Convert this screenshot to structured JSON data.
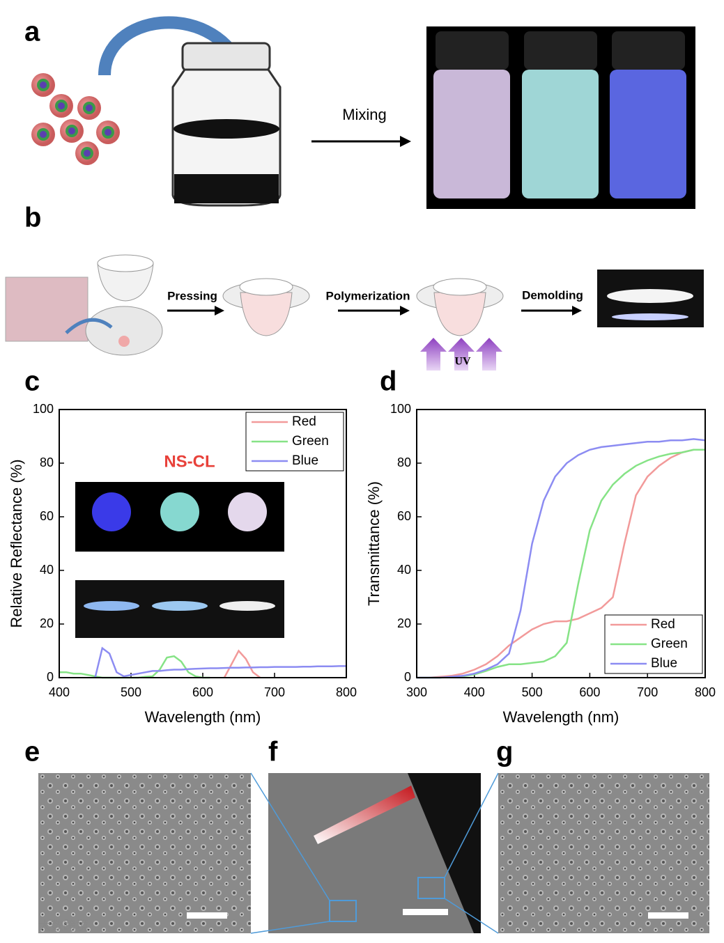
{
  "panels": {
    "a": {
      "label": "a",
      "step": "Mixing"
    },
    "b": {
      "label": "b",
      "steps": [
        "Pressing",
        "Polymerization",
        "Demolding"
      ],
      "uv": "UV"
    },
    "c": {
      "label": "c"
    },
    "d": {
      "label": "d"
    },
    "e": {
      "label": "e"
    },
    "f": {
      "label": "f"
    },
    "g": {
      "label": "g"
    }
  },
  "watermark": "大数跨境",
  "chart_data": [
    {
      "type": "line",
      "annotation": "NS-CL",
      "annotation_color": "#e8413a",
      "xlabel": "Wavelength (nm)",
      "ylabel": "Relative Reflectance (%)",
      "x": [
        400,
        410,
        420,
        430,
        440,
        450,
        460,
        470,
        480,
        490,
        500,
        510,
        520,
        530,
        540,
        550,
        560,
        570,
        580,
        590,
        600,
        610,
        620,
        630,
        640,
        650,
        660,
        670,
        680,
        690,
        700,
        710,
        720,
        730,
        740,
        750,
        760,
        770,
        780,
        790,
        800
      ],
      "series": [
        {
          "name": "Red",
          "color": "#f29a9a",
          "values": [
            null,
            null,
            null,
            null,
            null,
            null,
            null,
            null,
            null,
            null,
            null,
            null,
            null,
            null,
            null,
            null,
            null,
            null,
            null,
            null,
            null,
            null,
            null,
            0,
            5,
            10,
            7,
            2,
            0,
            null,
            null,
            null,
            null,
            null,
            null,
            null,
            null,
            null,
            null,
            null,
            null
          ]
        },
        {
          "name": "Green",
          "color": "#86e386",
          "values": [
            2,
            2,
            1.5,
            1.5,
            1,
            0.5,
            0,
            0,
            0,
            0,
            0,
            0,
            0.3,
            0.5,
            3,
            7.5,
            8,
            6,
            2,
            0.5,
            0,
            0,
            null,
            null,
            null,
            null,
            null,
            null,
            null,
            null,
            null,
            null,
            null,
            null,
            null,
            null,
            null,
            null,
            null,
            null,
            null
          ]
        },
        {
          "name": "Blue",
          "color": "#8c8cf2",
          "values": [
            null,
            null,
            null,
            null,
            null,
            0,
            11,
            9,
            2,
            0.5,
            1,
            1.5,
            2,
            2.5,
            2.5,
            2.8,
            3,
            3,
            3.2,
            3.3,
            3.4,
            3.5,
            3.5,
            3.6,
            3.7,
            3.7,
            3.8,
            3.8,
            3.9,
            3.9,
            4,
            4,
            4,
            4,
            4.1,
            4.1,
            4.2,
            4.2,
            4.2,
            4.3,
            4.3
          ]
        }
      ],
      "xlim": [
        400,
        800
      ],
      "xticks": [
        400,
        500,
        600,
        700,
        800
      ],
      "ylim": [
        0,
        100
      ],
      "yticks": [
        0,
        20,
        40,
        60,
        80,
        100
      ],
      "legend": "upper right"
    },
    {
      "type": "line",
      "xlabel": "Wavelength (nm)",
      "ylabel": "Transmittance (%)",
      "x": [
        300,
        320,
        340,
        360,
        380,
        400,
        420,
        440,
        460,
        480,
        500,
        520,
        540,
        560,
        580,
        600,
        620,
        640,
        660,
        680,
        700,
        720,
        740,
        760,
        780,
        800
      ],
      "series": [
        {
          "name": "Red",
          "color": "#f29a9a",
          "values": [
            0,
            0,
            0.3,
            0.7,
            1.5,
            3,
            5,
            8,
            12,
            15,
            18,
            20,
            21,
            21,
            22,
            24,
            26,
            30,
            50,
            68,
            75,
            79,
            82,
            84,
            85,
            85
          ]
        },
        {
          "name": "Green",
          "color": "#86e386",
          "values": [
            0,
            0,
            0,
            0.2,
            0.5,
            1.2,
            2.5,
            4,
            5,
            5,
            5.5,
            6,
            8,
            13,
            35,
            55,
            66,
            72,
            76,
            79,
            81,
            82.5,
            83.5,
            84,
            85,
            85
          ]
        },
        {
          "name": "Blue",
          "color": "#8c8cf2",
          "values": [
            0,
            0,
            0,
            0.3,
            0.7,
            1.5,
            3,
            5,
            9,
            25,
            50,
            66,
            75,
            80,
            83,
            85,
            86,
            86.5,
            87,
            87.5,
            88,
            88,
            88.5,
            88.5,
            89,
            88.5
          ]
        }
      ],
      "xlim": [
        300,
        800
      ],
      "xticks": [
        300,
        400,
        500,
        600,
        700,
        800
      ],
      "ylim": [
        0,
        100
      ],
      "yticks": [
        0,
        20,
        40,
        60,
        80,
        100
      ],
      "legend": "lower right"
    }
  ]
}
